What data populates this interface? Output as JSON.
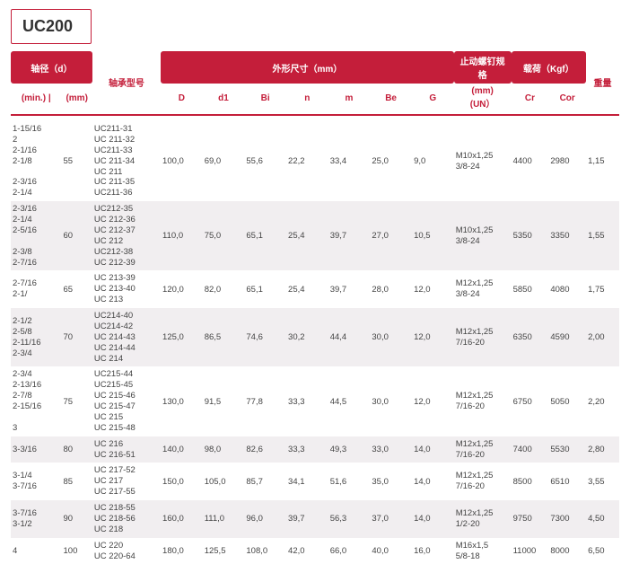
{
  "title": "UC200",
  "header": {
    "group_shaft": "轴径（d）",
    "col_min": "(min.)",
    "col_sep": "|",
    "col_mm": "(mm)",
    "col_model": "轴承型号",
    "group_dims": "外形尺寸（mm）",
    "col_D": "D",
    "col_d1": "d1",
    "col_Bi": "Bi",
    "col_n": "n",
    "col_m": "m",
    "col_Be": "Be",
    "col_G": "G",
    "group_bolt": "止动螺钉规格",
    "col_bolt_sub": "(mm)\n(UN）",
    "group_load": "载荷（Kgf）",
    "col_Cr": "Cr",
    "col_Cor": "Cor",
    "col_weight": "重量"
  },
  "rows": [
    {
      "min": [
        "1-15/16",
        "2",
        "2-1/16",
        "2-1/8",
        "",
        "2-3/16",
        "2-1/4"
      ],
      "mm": "55",
      "models": [
        "UC211-31",
        "UC 211-32",
        "UC211-33",
        "UC 211-34",
        "UC 211",
        "UC 211-35",
        "UC211-36"
      ],
      "D": "100,0",
      "d1": "69,0",
      "Bi": "55,6",
      "n": "22,2",
      "m": "33,4",
      "Be": "25,0",
      "G": "9,0",
      "bolt": [
        "M10x1,25",
        "3/8-24"
      ],
      "Cr": "4400",
      "Cor": "2980",
      "wt": "1,15"
    },
    {
      "min": [
        "2-3/16",
        "2-1/4",
        "2-5/16",
        "",
        "2-3/8",
        "2-7/16"
      ],
      "mm": "60",
      "models": [
        "UC212-35",
        "UC 212-36",
        "UC 212-37",
        "UC 212",
        "UC212-38",
        "UC 212-39"
      ],
      "D": "110,0",
      "d1": "75,0",
      "Bi": "65,1",
      "n": "25,4",
      "m": "39,7",
      "Be": "27,0",
      "G": "10,5",
      "bolt": [
        "M10x1,25",
        "3/8-24"
      ],
      "Cr": "5350",
      "Cor": "3350",
      "wt": "1,55"
    },
    {
      "min": [
        "2-7/16",
        "2-1/"
      ],
      "mm": "65",
      "models": [
        "UC 213-39",
        "UC 213-40",
        "UC 213"
      ],
      "D": "120,0",
      "d1": "82,0",
      "Bi": "65,1",
      "n": "25,4",
      "m": "39,7",
      "Be": "28,0",
      "G": "12,0",
      "bolt": [
        "M12x1,25",
        "3/8-24"
      ],
      "Cr": "5850",
      "Cor": "4080",
      "wt": "1,75"
    },
    {
      "min": [
        "2-1/2",
        "2-5/8",
        "2-11/16",
        "2-3/4"
      ],
      "mm": "70",
      "models": [
        "UC214-40",
        "UC214-42",
        "UC 214-43",
        "UC 214-44",
        "UC 214"
      ],
      "D": "125,0",
      "d1": "86,5",
      "Bi": "74,6",
      "n": "30,2",
      "m": "44,4",
      "Be": "30,0",
      "G": "12,0",
      "bolt": [
        "M12x1,25",
        "7/16-20"
      ],
      "Cr": "6350",
      "Cor": "4590",
      "wt": "2,00"
    },
    {
      "min": [
        "2-3/4",
        "2-13/16",
        "2-7/8",
        "2-15/16",
        "",
        "3"
      ],
      "mm": "75",
      "models": [
        "UC215-44",
        "UC215-45",
        "UC 215-46",
        "UC 215-47",
        "UC 215",
        "UC 215-48"
      ],
      "D": "130,0",
      "d1": "91,5",
      "Bi": "77,8",
      "n": "33,3",
      "m": "44,5",
      "Be": "30,0",
      "G": "12,0",
      "bolt": [
        "M12x1,25",
        "7/16-20"
      ],
      "Cr": "6750",
      "Cor": "5050",
      "wt": "2,20"
    },
    {
      "min": [
        "3-3/16"
      ],
      "mm": "80",
      "models": [
        "UC 216",
        "UC 216-51"
      ],
      "D": "140,0",
      "d1": "98,0",
      "Bi": "82,6",
      "n": "33,3",
      "m": "49,3",
      "Be": "33,0",
      "G": "14,0",
      "bolt": [
        "M12x1,25",
        "7/16-20"
      ],
      "Cr": "7400",
      "Cor": "5530",
      "wt": "2,80"
    },
    {
      "min": [
        "3-1/4",
        "3-7/16"
      ],
      "mm": "85",
      "models": [
        "UC 217-52",
        "UC 217",
        "UC 217-55"
      ],
      "D": "150,0",
      "d1": "105,0",
      "Bi": "85,7",
      "n": "34,1",
      "m": "51,6",
      "Be": "35,0",
      "G": "14,0",
      "bolt": [
        "M12x1,25",
        "7/16-20"
      ],
      "Cr": "8500",
      "Cor": "6510",
      "wt": "3,55"
    },
    {
      "min": [
        "3-7/16",
        "3-1/2"
      ],
      "mm": "90",
      "models": [
        "UC 218-55",
        "UC 218-56",
        "UC 218"
      ],
      "D": "160,0",
      "d1": "111,0",
      "Bi": "96,0",
      "n": "39,7",
      "m": "56,3",
      "Be": "37,0",
      "G": "14,0",
      "bolt": [
        "M12x1,25",
        "1/2-20"
      ],
      "Cr": "9750",
      "Cor": "7300",
      "wt": "4,50"
    },
    {
      "min": [
        "4"
      ],
      "mm": "100",
      "models": [
        "UC 220",
        "UC 220-64"
      ],
      "D": "180,0",
      "d1": "125,5",
      "Bi": "108,0",
      "n": "42,0",
      "m": "66,0",
      "Be": "40,0",
      "G": "16,0",
      "bolt": [
        "M16x1,5",
        "5/8-18"
      ],
      "Cr": "11000",
      "Cor": "8000",
      "wt": "6,50"
    }
  ]
}
